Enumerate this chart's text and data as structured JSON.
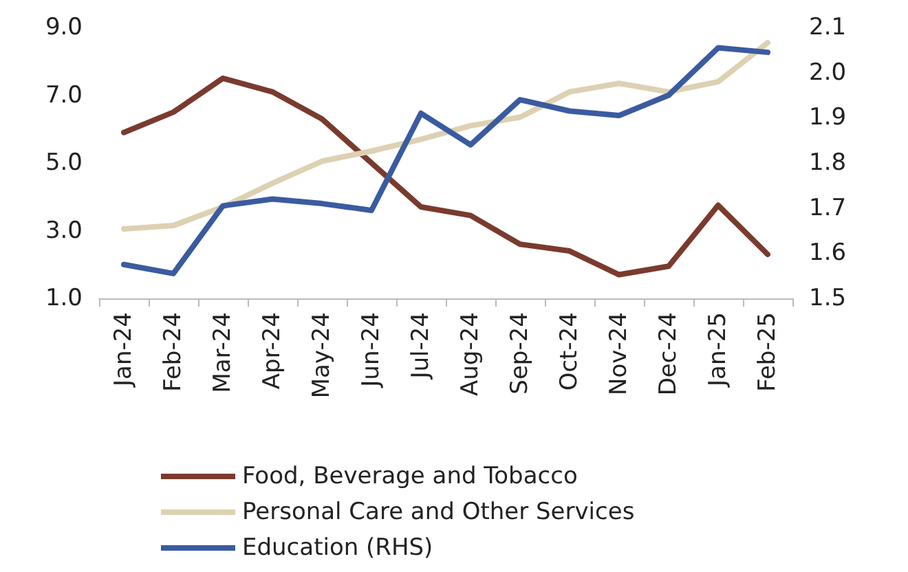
{
  "chart_data": {
    "type": "line",
    "categories": [
      "Jan-24",
      "Feb-24",
      "Mar-24",
      "Apr-24",
      "May-24",
      "Jun-24",
      "Jul-24",
      "Aug-24",
      "Sep-24",
      "Oct-24",
      "Nov-24",
      "Dec-24",
      "Jan-25",
      "Feb-25"
    ],
    "series": [
      {
        "name": "Food, Beverage and Tobacco",
        "color": "#7a3b2e",
        "values": [
          5.9,
          6.5,
          7.5,
          7.1,
          6.3,
          5.0,
          3.7,
          3.45,
          2.6,
          2.4,
          1.7,
          1.95,
          3.75,
          2.3
        ]
      },
      {
        "name": "Personal Care and Other Services",
        "color": "#ddd1b2",
        "values": [
          3.05,
          3.15,
          3.7,
          4.4,
          5.05,
          5.35,
          5.7,
          6.1,
          6.35,
          7.1,
          7.35,
          7.1,
          7.4,
          8.55
        ]
      },
      {
        "name": "Education (RHS)",
        "color": "#3b5ba0",
        "axis": "y2",
        "values": [
          1.575,
          1.555,
          1.705,
          1.72,
          1.71,
          1.695,
          1.91,
          1.84,
          1.94,
          1.915,
          1.905,
          1.95,
          2.055,
          2.045
        ]
      }
    ],
    "ylim": [
      1,
      9
    ],
    "yticks": [
      {
        "value": 1,
        "label": "1.0"
      },
      {
        "value": 3,
        "label": "3.0"
      },
      {
        "value": 5,
        "label": "5.0"
      },
      {
        "value": 7,
        "label": "7.0"
      },
      {
        "value": 9,
        "label": "9.0"
      }
    ],
    "y2lim": [
      1.5,
      2.1
    ],
    "y2ticks": [
      1.5,
      1.6,
      1.7,
      1.8,
      1.9,
      {
        "value": 2.0,
        "label": "2.0"
      },
      2.1
    ],
    "grid": false,
    "legend": "bottom",
    "marker": "none",
    "line_style": "solid"
  }
}
